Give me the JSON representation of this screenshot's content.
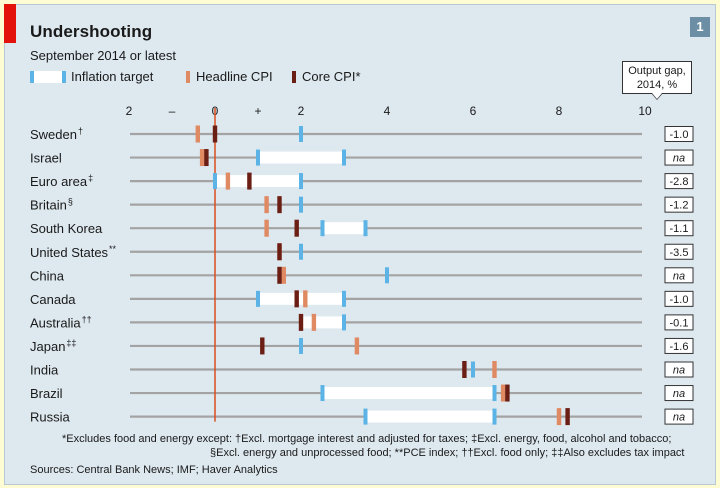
{
  "header": {
    "title": "Undershooting",
    "subtitle": "September 2014 or latest",
    "chart_number": "1"
  },
  "legend": {
    "items": [
      {
        "label": "Inflation target",
        "kind": "target"
      },
      {
        "label": "Headline CPI",
        "kind": "headline"
      },
      {
        "label": "Core CPI*",
        "kind": "core"
      }
    ]
  },
  "output_gap_header": {
    "line1": "Output gap,",
    "line2": "2014, %"
  },
  "colors": {
    "target_fill": "#ffffff",
    "target_edge": "#5bb4e5",
    "headline": "#e08a63",
    "core": "#6b1e14",
    "zero_line": "#d94e1f",
    "row_line": "#a3a3a3",
    "background": "#dde8ef"
  },
  "chart_data": {
    "type": "range-dot",
    "x_ticks": [
      "2",
      "–",
      "0",
      "+",
      "2",
      "4",
      "6",
      "8",
      "10"
    ],
    "xlim": [
      -2,
      10
    ],
    "series": [
      {
        "name": "Inflation target",
        "kind": "range"
      },
      {
        "name": "Headline CPI",
        "kind": "point"
      },
      {
        "name": "Core CPI*",
        "kind": "point"
      }
    ],
    "rows": [
      {
        "country": "Sweden",
        "sup": "†",
        "target": [
          2,
          2
        ],
        "headline": -0.4,
        "core": 0.0,
        "output_gap": "-1.0"
      },
      {
        "country": "Israel",
        "sup": "",
        "target": [
          1,
          3
        ],
        "headline": -0.3,
        "core": -0.2,
        "output_gap": "na"
      },
      {
        "country": "Euro area",
        "sup": "‡",
        "target": [
          0,
          2
        ],
        "headline": 0.3,
        "core": 0.8,
        "output_gap": "-2.8"
      },
      {
        "country": "Britain",
        "sup": "§",
        "target": [
          2,
          2
        ],
        "headline": 1.2,
        "core": 1.5,
        "output_gap": "-1.2"
      },
      {
        "country": "South Korea",
        "sup": "",
        "target": [
          2.5,
          3.5
        ],
        "headline": 1.2,
        "core": 1.9,
        "output_gap": "-1.1"
      },
      {
        "country": "United States",
        "sup": "**",
        "target": [
          2,
          2
        ],
        "headline": 1.5,
        "core": 1.5,
        "output_gap": "-3.5"
      },
      {
        "country": "China",
        "sup": "",
        "target": [
          4,
          4
        ],
        "headline": 1.6,
        "core": 1.5,
        "output_gap": "na"
      },
      {
        "country": "Canada",
        "sup": "",
        "target": [
          1,
          3
        ],
        "headline": 2.1,
        "core": 1.9,
        "output_gap": "-1.0"
      },
      {
        "country": "Australia",
        "sup": "††",
        "target": [
          2,
          3
        ],
        "headline": 2.3,
        "core": 2.0,
        "output_gap": "-0.1"
      },
      {
        "country": "Japan",
        "sup": "‡‡",
        "target": [
          2,
          2
        ],
        "headline": 3.3,
        "core": 1.1,
        "output_gap": "-1.6"
      },
      {
        "country": "India",
        "sup": "",
        "target": [
          6,
          6
        ],
        "headline": 6.5,
        "core": 5.8,
        "output_gap": "na"
      },
      {
        "country": "Brazil",
        "sup": "",
        "target": [
          2.5,
          6.5
        ],
        "headline": 6.7,
        "core": 6.8,
        "output_gap": "na"
      },
      {
        "country": "Russia",
        "sup": "",
        "target": [
          3.5,
          6.5
        ],
        "headline": 8.0,
        "core": 8.2,
        "output_gap": "na"
      }
    ]
  },
  "footnotes": {
    "line1": "*Excludes food and energy except: †Excl. mortgage interest and adjusted for taxes; ‡Excl. energy, food, alcohol and tobacco;",
    "line2": "§Excl. energy and unprocessed food; **PCE index; ††Excl. food only; ‡‡Also excludes tax impact"
  },
  "source": "Sources: Central Bank News; IMF; Haver Analytics"
}
